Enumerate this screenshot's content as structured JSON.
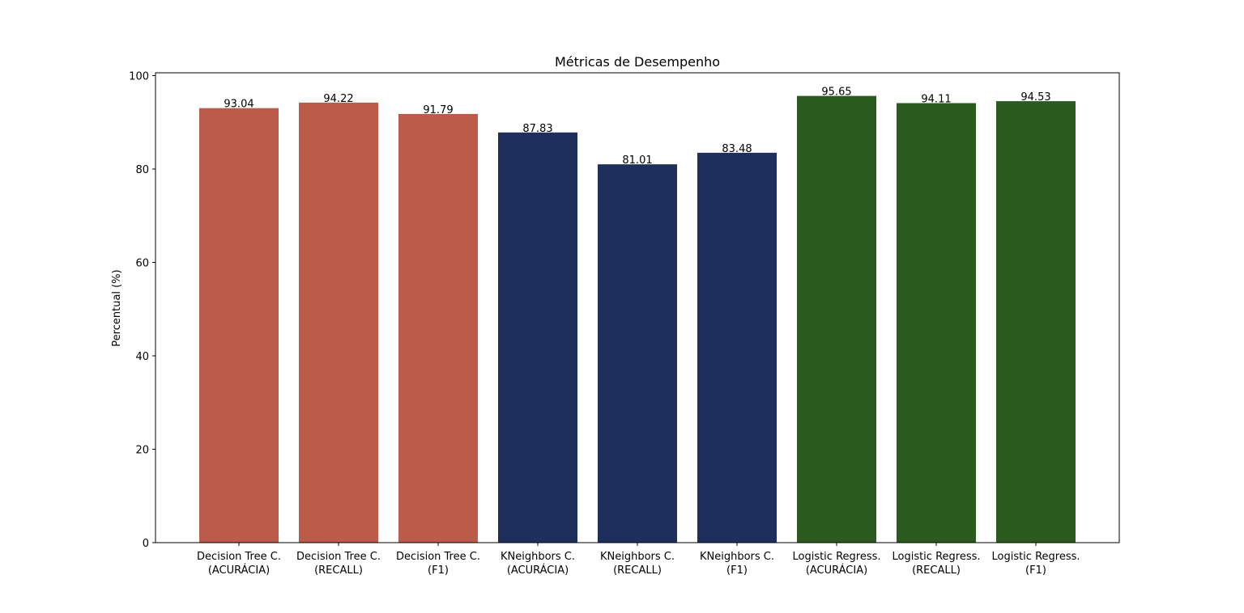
{
  "chart_data": {
    "type": "bar",
    "title": "Métricas de Desempenho",
    "xlabel": "",
    "ylabel": "Percentual (%)",
    "ylim": [
      0,
      100
    ],
    "yticks": [
      0,
      20,
      40,
      60,
      80,
      100
    ],
    "ytick_labels": [
      "0",
      "20",
      "40",
      "60",
      "80",
      "100"
    ],
    "grid": false,
    "categories": [
      [
        "Decision Tree C.",
        "(ACURÁCIA)"
      ],
      [
        "Decision Tree C.",
        "(RECALL)"
      ],
      [
        "Decision Tree C.",
        "(F1)"
      ],
      [
        "KNeighbors C.",
        "(ACURÁCIA)"
      ],
      [
        "KNeighbors C.",
        "(RECALL)"
      ],
      [
        "KNeighbors C.",
        "(F1)"
      ],
      [
        "Logistic Regress.",
        "(ACURÁCIA)"
      ],
      [
        "Logistic Regress.",
        "(RECALL)"
      ],
      [
        "Logistic Regress.",
        "(F1)"
      ]
    ],
    "values": [
      93.04,
      94.22,
      91.79,
      87.83,
      81.01,
      83.48,
      95.65,
      94.11,
      94.53
    ],
    "value_labels": [
      "93.04",
      "94.22",
      "91.79",
      "87.83",
      "81.01",
      "83.48",
      "95.65",
      "94.11",
      "94.53"
    ],
    "bar_colors": [
      "#bb5c4b",
      "#bb5c4b",
      "#bb5c4b",
      "#1e2f5c",
      "#1e2f5c",
      "#1e2f5c",
      "#2a5a1e",
      "#2a5a1e",
      "#2a5a1e"
    ]
  }
}
